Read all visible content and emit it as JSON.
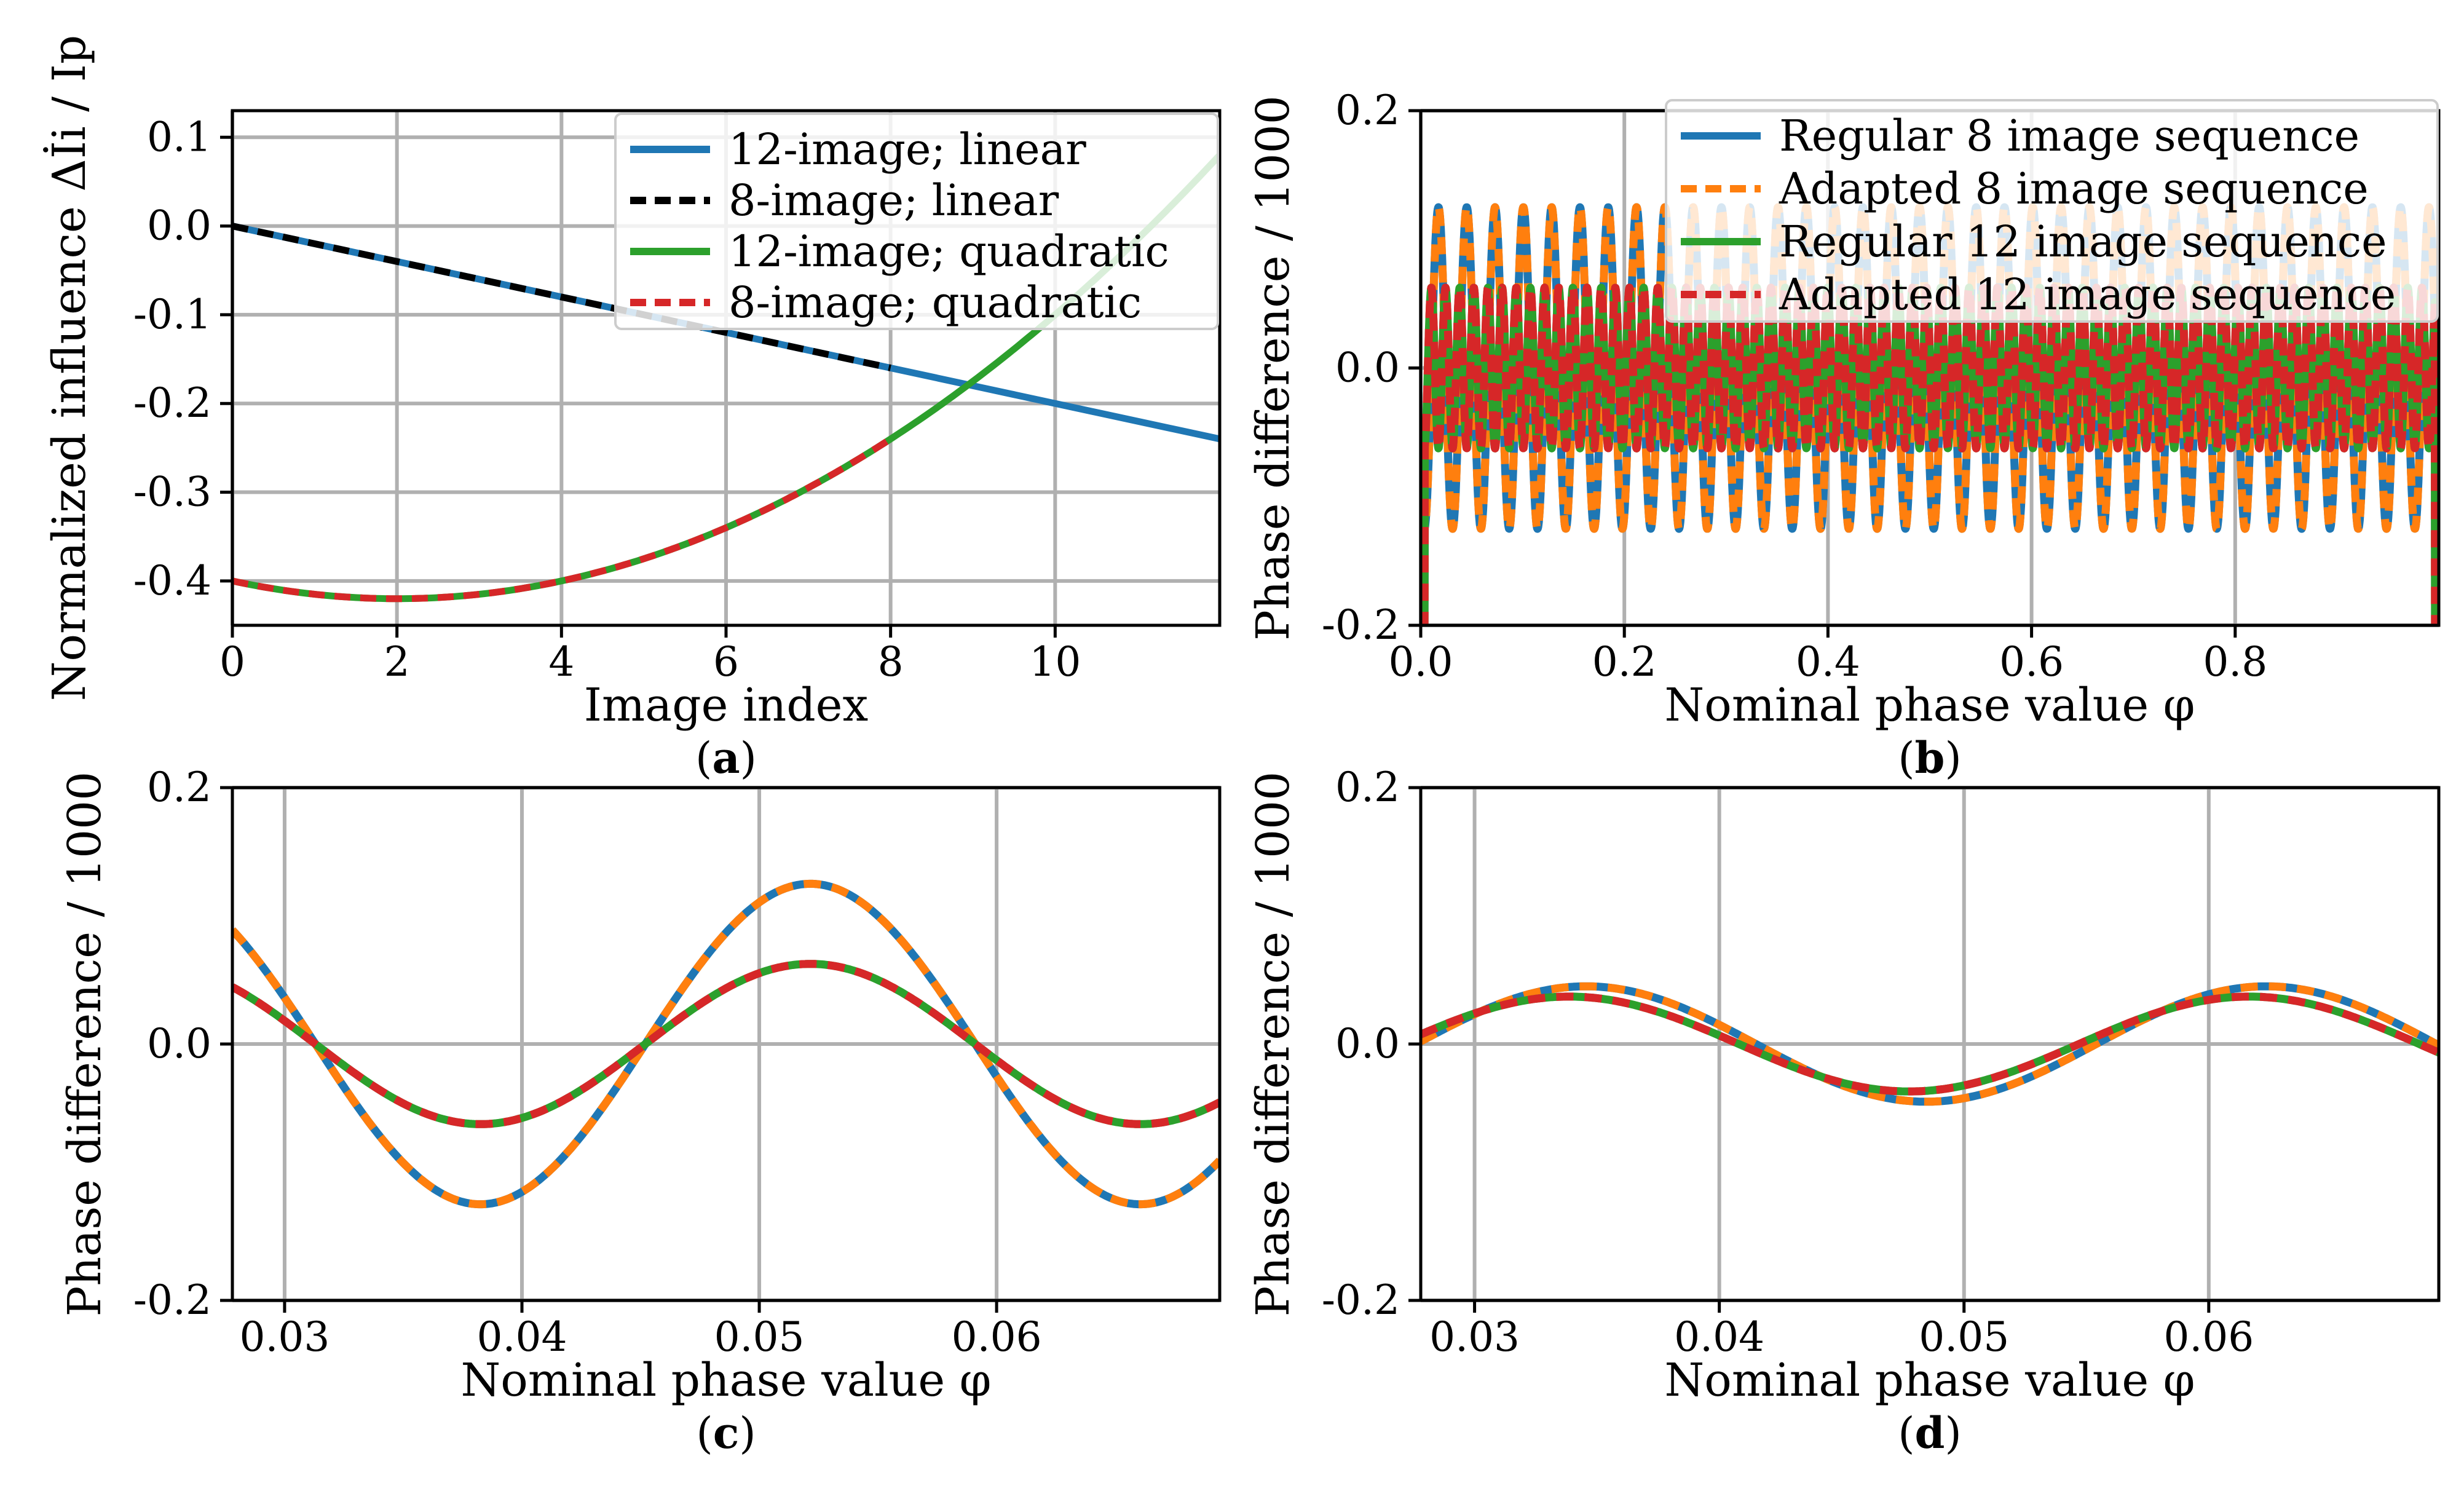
{
  "colors": {
    "blue": "#1f77b4",
    "orange": "#ff7f0e",
    "green": "#2ca02c",
    "red": "#d62728",
    "black": "#000000",
    "grid": "#b0b0b0"
  },
  "chart_data": [
    {
      "panel": "(a)",
      "panel_letter": "a",
      "type": "line",
      "xlabel": "Image index",
      "ylabel": "Normalized influence Δİi / Ip",
      "xlim": [
        0,
        12
      ],
      "ylim": [
        -0.45,
        0.13
      ],
      "xticks": [
        0,
        2,
        4,
        6,
        8,
        10
      ],
      "yticks": [
        0.1,
        0.0,
        -0.1,
        -0.2,
        -0.3,
        -0.4
      ],
      "ytick_labels": [
        "0.1",
        "0.0",
        "-0.1",
        "-0.2",
        "-0.3",
        "-0.4"
      ],
      "grid": true,
      "legend_position": "top-right",
      "series": [
        {
          "name": "12-image; linear",
          "color": "blue",
          "style": "solid",
          "x": [
            0,
            12
          ],
          "y": [
            0.0,
            -0.24
          ]
        },
        {
          "name": "8-image; linear",
          "color": "black",
          "style": "dashed",
          "x": [
            0,
            8
          ],
          "y": [
            0.0,
            -0.16
          ]
        },
        {
          "name": "12-image; quadratic",
          "color": "green",
          "style": "solid",
          "x": [
            0,
            1,
            2,
            3,
            4,
            5,
            6,
            7,
            8,
            9,
            10,
            11,
            12
          ],
          "y": [
            -0.4,
            -0.415,
            -0.42,
            -0.415,
            -0.4,
            -0.375,
            -0.34,
            -0.295,
            -0.24,
            -0.175,
            -0.1,
            -0.015,
            0.08
          ]
        },
        {
          "name": "8-image; quadratic",
          "color": "red",
          "style": "dashed",
          "x": [
            0,
            1,
            2,
            3,
            4,
            5,
            6,
            7,
            8
          ],
          "y": [
            -0.4,
            -0.415,
            -0.42,
            -0.415,
            -0.4,
            -0.375,
            -0.34,
            -0.295,
            -0.24
          ]
        }
      ]
    },
    {
      "panel": "(b)",
      "panel_letter": "b",
      "type": "line",
      "xlabel": "Nominal phase value φ",
      "ylabel": "Phase difference / 1000",
      "xlim": [
        0.0,
        1.0
      ],
      "ylim": [
        -0.2,
        0.2
      ],
      "xticks": [
        0.0,
        0.2,
        0.4,
        0.6,
        0.8
      ],
      "xtick_labels": [
        "0.0",
        "0.2",
        "0.4",
        "0.6",
        "0.8"
      ],
      "yticks": [
        0.2,
        0.0,
        -0.2
      ],
      "ytick_labels": [
        "0.2",
        "0.0",
        "-0.2"
      ],
      "grid": true,
      "legend_position": "top-right",
      "series": [
        {
          "name": "Regular 8 image sequence",
          "color": "blue",
          "style": "solid",
          "amplitude": 0.125,
          "period": 0.0278
        },
        {
          "name": "Adapted 8 image sequence",
          "color": "orange",
          "style": "dashed",
          "amplitude": 0.125,
          "period": 0.0278
        },
        {
          "name": "Regular 12 image sequence",
          "color": "green",
          "style": "solid",
          "amplitude": 0.0625,
          "period": 0.0139
        },
        {
          "name": "Adapted 12 image sequence",
          "color": "red",
          "style": "dashed",
          "amplitude": 0.0625,
          "period": 0.0139
        }
      ]
    },
    {
      "panel": "(c)",
      "panel_letter": "c",
      "type": "line",
      "xlabel": "Nominal phase value φ",
      "ylabel": "Phase difference / 1000",
      "xlim": [
        0.0278,
        0.0694
      ],
      "ylim": [
        -0.2,
        0.2
      ],
      "xticks": [
        0.03,
        0.04,
        0.05,
        0.06
      ],
      "xtick_labels": [
        "0.03",
        "0.04",
        "0.05",
        "0.06"
      ],
      "yticks": [
        0.2,
        0.0,
        -0.2
      ],
      "ytick_labels": [
        "0.2",
        "0.0",
        "-0.2"
      ],
      "grid": true,
      "series": [
        {
          "name": "Regular 8 image sequence",
          "color": "blue",
          "style": "solid",
          "amplitude": 0.125,
          "phase_shift": 0.0313,
          "period": 0.0278
        },
        {
          "name": "Adapted 8 image sequence",
          "color": "orange",
          "style": "dashed",
          "amplitude": 0.125,
          "phase_shift": 0.0313,
          "period": 0.0278
        },
        {
          "name": "Regular 12 image sequence",
          "color": "green",
          "style": "solid",
          "amplitude": 0.0625,
          "phase_shift": 0.0313,
          "period": 0.0278
        },
        {
          "name": "Adapted 12 image sequence",
          "color": "red",
          "style": "dashed",
          "amplitude": 0.0625,
          "phase_shift": 0.0313,
          "period": 0.0278
        }
      ]
    },
    {
      "panel": "(d)",
      "panel_letter": "d",
      "type": "line",
      "xlabel": "Nominal phase value φ",
      "ylabel": "Phase difference / 1000",
      "xlim": [
        0.0278,
        0.0694
      ],
      "ylim": [
        -0.2,
        0.2
      ],
      "xticks": [
        0.03,
        0.04,
        0.05,
        0.06
      ],
      "xtick_labels": [
        "0.03",
        "0.04",
        "0.05",
        "0.06"
      ],
      "yticks": [
        0.2,
        0.0,
        -0.2
      ],
      "ytick_labels": [
        "0.2",
        "0.0",
        "-0.2"
      ],
      "grid": true,
      "series": [
        {
          "name": "Regular 8 image sequence",
          "color": "blue",
          "style": "solid",
          "amplitude": 0.045,
          "phase_shift": 0.0415,
          "period": 0.0278
        },
        {
          "name": "Adapted 8 image sequence",
          "color": "orange",
          "style": "dashed",
          "amplitude": 0.045,
          "phase_shift": 0.0415,
          "period": 0.0278
        },
        {
          "name": "Regular 12 image sequence",
          "color": "green",
          "style": "solid",
          "amplitude": 0.037,
          "phase_shift": 0.0408,
          "period": 0.0278
        },
        {
          "name": "Adapted 12 image sequence",
          "color": "red",
          "style": "dashed",
          "amplitude": 0.037,
          "phase_shift": 0.0408,
          "period": 0.0278
        }
      ]
    }
  ]
}
